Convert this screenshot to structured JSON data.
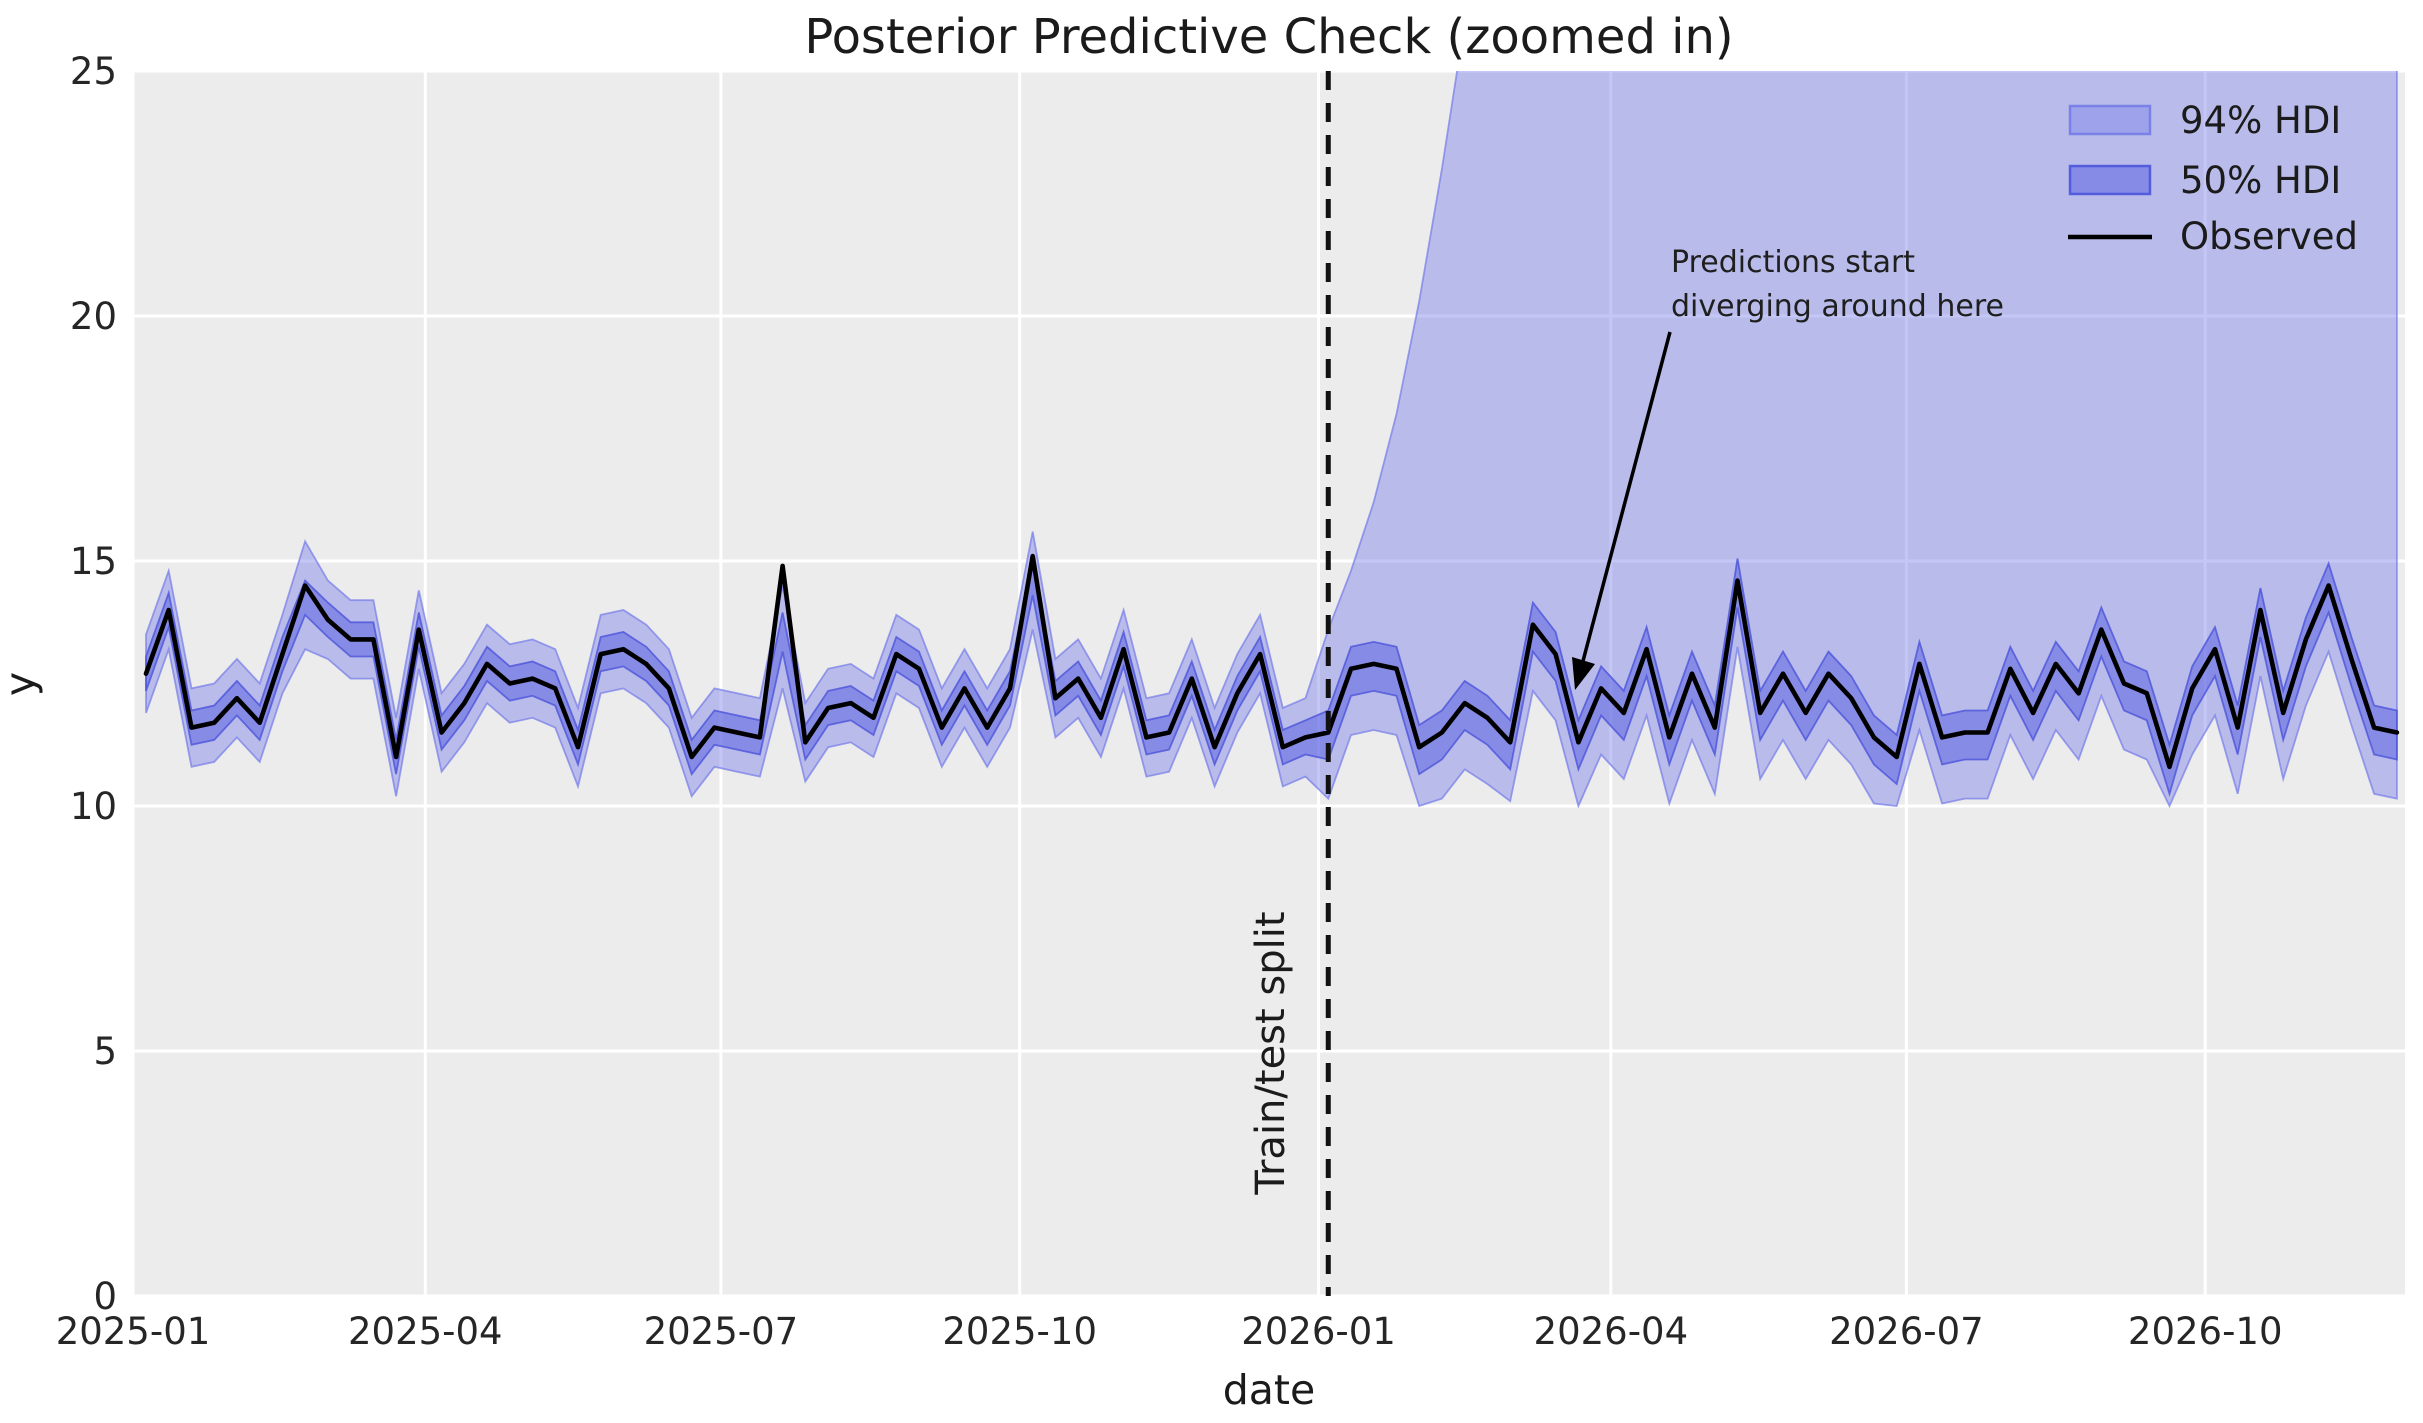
{
  "title": "Posterior Predictive Check (zoomed in)",
  "x_label": "date",
  "y_label": "y",
  "legend": {
    "items": [
      {
        "label": "94% HDI",
        "swatch": "light-band"
      },
      {
        "label": "50% HDI",
        "swatch": "dark-band"
      },
      {
        "label": "Observed",
        "swatch": "black-line"
      }
    ]
  },
  "annotation": {
    "line1": "Predictions start",
    "line2": "diverging around here"
  },
  "split": {
    "label": "Train/test split",
    "date": "2026-01-04"
  },
  "colors": {
    "panel_background": "#ececec",
    "grid": "#ffffff",
    "hdi94_fill": "rgba(124,130,235,0.45)",
    "hdi94_edge": "rgba(116,123,232,0.7)",
    "hdi50_fill": "rgba(104,110,228,0.62)",
    "hdi50_edge": "rgba(76,84,218,0.8)",
    "observed_line": "#000000",
    "split_line": "#111111",
    "text": "#1b1b1b"
  },
  "chart_data": {
    "type": "line",
    "title": "Posterior Predictive Check (zoomed in)",
    "xlabel": "date",
    "ylabel": "y",
    "ylim": [
      0,
      25
    ],
    "grid": true,
    "legend_position": "upper right",
    "y_ticks": [
      0,
      5,
      10,
      15,
      20,
      25
    ],
    "x_ticks": [
      {
        "label": "2025-01",
        "date": "2025-01-01"
      },
      {
        "label": "2025-04",
        "date": "2025-04-01"
      },
      {
        "label": "2025-07",
        "date": "2025-07-01"
      },
      {
        "label": "2025-10",
        "date": "2025-10-01"
      },
      {
        "label": "2026-01",
        "date": "2026-01-01"
      },
      {
        "label": "2026-04",
        "date": "2026-04-01"
      },
      {
        "label": "2026-07",
        "date": "2026-07-01"
      },
      {
        "label": "2026-10",
        "date": "2026-10-01"
      }
    ],
    "x_start_date": "2025-01-05",
    "x_step_days": 7,
    "split_date": "2026-01-04",
    "series": {
      "observed": [
        12.7,
        14.0,
        11.6,
        11.7,
        12.2,
        11.7,
        13.1,
        14.5,
        13.8,
        13.4,
        13.4,
        11.0,
        13.6,
        11.5,
        12.1,
        12.9,
        12.5,
        12.6,
        12.4,
        11.2,
        13.1,
        13.2,
        12.9,
        12.4,
        11.0,
        11.6,
        11.5,
        11.4,
        14.9,
        11.3,
        12.0,
        12.1,
        11.8,
        13.1,
        12.8,
        11.6,
        12.4,
        11.6,
        12.4,
        15.1,
        12.2,
        12.6,
        11.8,
        13.2,
        11.4,
        11.5,
        12.6,
        11.2,
        12.3,
        13.1,
        11.2,
        11.4,
        11.5,
        12.8,
        12.9,
        12.8,
        11.2,
        11.5,
        12.1,
        11.8,
        11.3,
        13.7,
        13.1,
        11.3,
        12.4,
        11.9,
        13.2,
        11.4,
        12.7,
        11.6,
        14.6,
        11.9,
        12.7,
        11.9,
        12.7,
        12.2,
        11.4,
        11.0,
        12.9,
        11.4,
        11.5,
        11.5,
        12.8,
        11.9,
        12.9,
        12.3,
        13.6,
        12.5,
        12.3,
        10.8,
        12.4,
        13.2,
        11.6,
        14.0,
        11.9,
        13.4,
        14.5,
        13.0,
        11.6,
        11.5
      ],
      "hdi50_lower": [
        12.35,
        13.65,
        11.25,
        11.35,
        11.85,
        11.35,
        12.75,
        13.9,
        13.45,
        13.05,
        13.05,
        10.65,
        13.25,
        11.15,
        11.75,
        12.55,
        12.15,
        12.25,
        12.05,
        10.85,
        12.75,
        12.85,
        12.55,
        12.05,
        10.65,
        11.25,
        11.15,
        11.05,
        13.15,
        10.95,
        11.65,
        11.75,
        11.45,
        12.75,
        12.45,
        11.25,
        12.05,
        11.25,
        12.05,
        14.3,
        11.85,
        12.25,
        11.45,
        12.85,
        11.05,
        11.15,
        12.25,
        10.85,
        11.95,
        12.75,
        10.85,
        11.05,
        10.95,
        12.25,
        12.35,
        12.25,
        10.65,
        10.95,
        11.55,
        11.25,
        10.75,
        13.15,
        12.55,
        10.75,
        11.85,
        11.35,
        12.65,
        10.85,
        12.15,
        11.05,
        14.05,
        11.35,
        12.15,
        11.35,
        12.15,
        11.65,
        10.85,
        10.45,
        12.35,
        10.85,
        10.95,
        10.95,
        12.25,
        11.35,
        12.35,
        11.75,
        13.05,
        11.95,
        11.75,
        10.25,
        11.85,
        12.65,
        11.05,
        13.45,
        11.35,
        12.85,
        13.95,
        12.45,
        11.05,
        10.95
      ],
      "hdi50_upper": [
        13.05,
        14.35,
        11.95,
        12.05,
        12.55,
        12.05,
        13.45,
        14.6,
        14.15,
        13.75,
        13.75,
        11.35,
        13.95,
        11.85,
        12.45,
        13.25,
        12.85,
        12.95,
        12.75,
        11.55,
        13.45,
        13.55,
        13.25,
        12.75,
        11.35,
        11.95,
        11.85,
        11.75,
        13.95,
        11.65,
        12.35,
        12.45,
        12.15,
        13.45,
        13.15,
        11.95,
        12.75,
        11.95,
        12.75,
        15.0,
        12.55,
        12.95,
        12.15,
        13.55,
        11.75,
        11.85,
        12.95,
        11.55,
        12.65,
        13.45,
        11.55,
        11.75,
        11.95,
        13.25,
        13.35,
        13.25,
        11.65,
        11.95,
        12.55,
        12.25,
        11.75,
        14.15,
        13.55,
        11.75,
        12.85,
        12.35,
        13.65,
        11.85,
        13.15,
        12.05,
        15.05,
        12.35,
        13.15,
        12.35,
        13.15,
        12.65,
        11.85,
        11.45,
        13.35,
        11.85,
        11.95,
        11.95,
        13.25,
        12.35,
        13.35,
        12.75,
        14.05,
        12.95,
        12.75,
        11.25,
        12.85,
        13.65,
        12.05,
        14.45,
        12.35,
        13.85,
        14.95,
        13.45,
        12.05,
        11.95
      ],
      "hdi94_lower": [
        11.9,
        13.2,
        10.8,
        10.9,
        11.4,
        10.9,
        12.3,
        13.2,
        13.0,
        12.6,
        12.6,
        10.2,
        12.8,
        10.7,
        11.3,
        12.1,
        11.7,
        11.8,
        11.6,
        10.4,
        12.3,
        12.4,
        12.1,
        11.6,
        10.2,
        10.8,
        10.7,
        10.6,
        12.4,
        10.5,
        11.2,
        11.3,
        11.0,
        12.3,
        12.0,
        10.8,
        11.6,
        10.8,
        11.6,
        13.6,
        11.4,
        11.8,
        11.0,
        12.4,
        10.6,
        10.7,
        11.8,
        10.4,
        11.5,
        12.3,
        10.4,
        10.6,
        10.15,
        11.45,
        11.55,
        11.45,
        10.0,
        10.15,
        10.75,
        10.45,
        10.1,
        12.35,
        11.75,
        10.0,
        11.05,
        10.55,
        11.85,
        10.05,
        11.35,
        10.25,
        13.25,
        10.55,
        11.35,
        10.55,
        11.35,
        10.85,
        10.05,
        10.0,
        11.55,
        10.05,
        10.15,
        10.15,
        11.45,
        10.55,
        11.55,
        10.95,
        12.25,
        11.15,
        10.95,
        10.0,
        11.05,
        11.85,
        10.25,
        12.65,
        10.55,
        12.05,
        13.15,
        11.65,
        10.25,
        10.15
      ],
      "hdi94_upper": [
        13.5,
        14.8,
        12.4,
        12.5,
        13.0,
        12.5,
        13.9,
        15.4,
        14.6,
        14.2,
        14.2,
        11.8,
        14.4,
        12.3,
        12.9,
        13.7,
        13.3,
        13.4,
        13.2,
        12.0,
        13.9,
        14.0,
        13.7,
        13.2,
        11.8,
        12.4,
        12.3,
        12.2,
        14.5,
        12.1,
        12.8,
        12.9,
        12.6,
        13.9,
        13.6,
        12.4,
        13.2,
        12.4,
        13.2,
        15.6,
        13.0,
        13.4,
        12.6,
        14.0,
        12.2,
        12.3,
        13.4,
        12.0,
        13.1,
        13.9,
        12.0,
        12.2,
        13.6,
        14.8,
        16.2,
        18.0,
        20.3,
        23.0,
        26.0,
        28,
        28,
        28,
        28,
        28,
        28,
        28,
        28,
        28,
        28,
        28,
        28,
        28,
        28,
        28,
        28,
        28,
        28,
        28,
        28,
        28,
        28,
        28,
        28,
        28,
        28,
        28,
        28,
        28,
        28,
        28,
        28,
        28,
        28,
        28,
        28,
        28,
        28,
        28,
        28,
        28
      ]
    }
  }
}
